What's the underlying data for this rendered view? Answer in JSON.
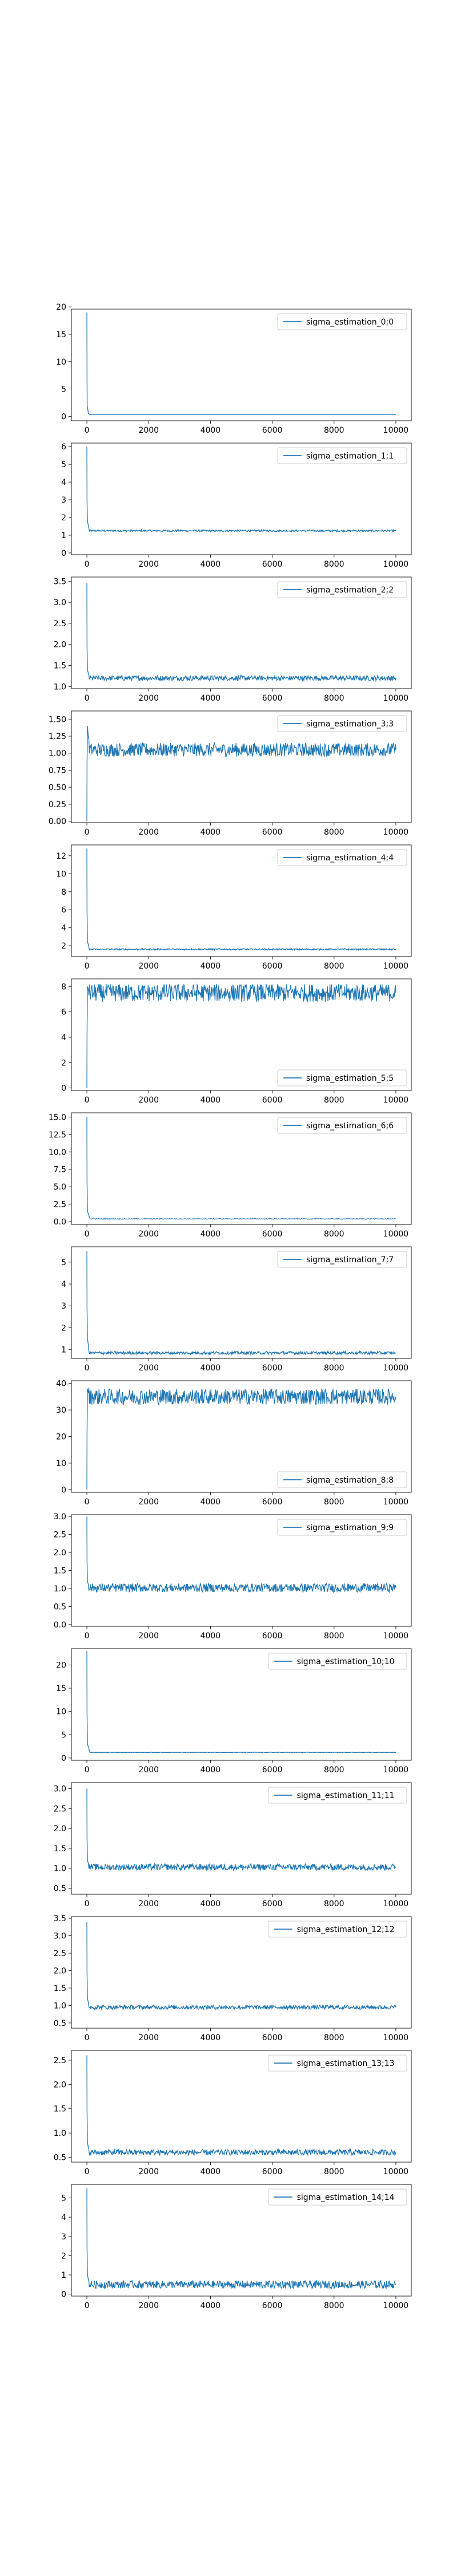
{
  "figure": {
    "background": "#ffffff",
    "line_color": "#1f77b4"
  },
  "chart_data": [
    {
      "type": "line",
      "legend": "sigma_estimation_0;0",
      "legend_loc": "upper right",
      "xlim": [
        -500,
        10500
      ],
      "ylim": [
        -0.8,
        19.6
      ],
      "xticks": [
        0,
        2000,
        4000,
        6000,
        8000,
        10000
      ],
      "yticks": [
        0,
        5,
        10,
        15,
        20
      ],
      "series": [
        {
          "x": [
            0,
            5,
            10,
            50,
            100,
            10000
          ],
          "y": [
            19.0,
            8.0,
            2.0,
            0.5,
            0.3,
            0.3
          ]
        }
      ]
    },
    {
      "type": "line",
      "legend": "sigma_estimation_1;1",
      "legend_loc": "upper right",
      "xlim": [
        -500,
        10500
      ],
      "ylim": [
        -0.1,
        6.2
      ],
      "xticks": [
        0,
        2000,
        4000,
        6000,
        8000,
        10000
      ],
      "yticks": [
        0,
        1,
        2,
        3,
        4,
        5,
        6
      ],
      "series": [
        {
          "x": [
            0,
            5,
            20,
            80,
            10000
          ],
          "y": [
            6.0,
            3.0,
            1.8,
            1.25,
            1.25
          ],
          "noise": 0.05
        }
      ]
    },
    {
      "type": "line",
      "legend": "sigma_estimation_2;2",
      "legend_loc": "upper right",
      "xlim": [
        -500,
        10500
      ],
      "ylim": [
        0.95,
        3.6
      ],
      "xticks": [
        0,
        2000,
        4000,
        6000,
        8000,
        10000
      ],
      "yticks": [
        1.0,
        1.5,
        2.0,
        2.5,
        3.0,
        3.5
      ],
      "series": [
        {
          "x": [
            0,
            5,
            20,
            80,
            10000
          ],
          "y": [
            3.45,
            2.0,
            1.4,
            1.2,
            1.2
          ],
          "noise": 0.06
        }
      ]
    },
    {
      "type": "line",
      "legend": "sigma_estimation_3;3",
      "legend_loc": "upper right",
      "xlim": [
        -500,
        10500
      ],
      "ylim": [
        -0.02,
        1.62
      ],
      "xticks": [
        0,
        2000,
        4000,
        6000,
        8000,
        10000
      ],
      "yticks": [
        0.0,
        0.25,
        0.5,
        0.75,
        1.0,
        1.25,
        1.5
      ],
      "series": [
        {
          "x": [
            0,
            5,
            20,
            80,
            10000
          ],
          "y": [
            0.0,
            0.8,
            1.4,
            1.05,
            1.05
          ],
          "noise": 0.1
        }
      ]
    },
    {
      "type": "line",
      "legend": "sigma_estimation_4;4",
      "legend_loc": "upper right",
      "xlim": [
        -500,
        10500
      ],
      "ylim": [
        0.8,
        13.2
      ],
      "xticks": [
        0,
        2000,
        4000,
        6000,
        8000,
        10000
      ],
      "yticks": [
        2,
        4,
        6,
        8,
        10,
        12
      ],
      "series": [
        {
          "x": [
            0,
            5,
            20,
            80,
            10000
          ],
          "y": [
            12.8,
            6.0,
            2.5,
            1.6,
            1.6
          ],
          "noise": 0.08
        }
      ]
    },
    {
      "type": "line",
      "legend": "sigma_estimation_5;5",
      "legend_loc": "lower right",
      "xlim": [
        -500,
        10500
      ],
      "ylim": [
        -0.2,
        8.6
      ],
      "xticks": [
        0,
        2000,
        4000,
        6000,
        8000,
        10000
      ],
      "yticks": [
        0,
        2,
        4,
        6,
        8
      ],
      "series": [
        {
          "x": [
            0,
            5,
            20,
            80,
            10000
          ],
          "y": [
            0.0,
            4.0,
            8.0,
            7.5,
            7.5
          ],
          "noise": 0.7
        }
      ]
    },
    {
      "type": "line",
      "legend": "sigma_estimation_6;6",
      "legend_loc": "upper right",
      "xlim": [
        -500,
        10500
      ],
      "ylim": [
        -0.4,
        15.6
      ],
      "xticks": [
        0,
        2000,
        4000,
        6000,
        8000,
        10000
      ],
      "yticks": [
        0.0,
        2.5,
        5.0,
        7.5,
        10.0,
        12.5,
        15.0
      ],
      "series": [
        {
          "x": [
            0,
            5,
            20,
            100,
            10000
          ],
          "y": [
            15.0,
            6.0,
            1.5,
            0.4,
            0.4
          ],
          "noise": 0.05
        }
      ]
    },
    {
      "type": "line",
      "legend": "sigma_estimation_7;7",
      "legend_loc": "upper right",
      "xlim": [
        -500,
        10500
      ],
      "ylim": [
        0.6,
        5.7
      ],
      "xticks": [
        0,
        2000,
        4000,
        6000,
        8000,
        10000
      ],
      "yticks": [
        1,
        2,
        3,
        4,
        5
      ],
      "series": [
        {
          "x": [
            0,
            5,
            20,
            80,
            10000
          ],
          "y": [
            5.5,
            3.0,
            1.5,
            0.85,
            0.85
          ],
          "noise": 0.07
        }
      ]
    },
    {
      "type": "line",
      "legend": "sigma_estimation_8;8",
      "legend_loc": "lower right",
      "xlim": [
        -500,
        10500
      ],
      "ylim": [
        -1,
        41
      ],
      "xticks": [
        0,
        2000,
        4000,
        6000,
        8000,
        10000
      ],
      "yticks": [
        0,
        10,
        20,
        30,
        40
      ],
      "series": [
        {
          "x": [
            0,
            5,
            20,
            80,
            10000
          ],
          "y": [
            0.0,
            20.0,
            38.0,
            35.0,
            35.0
          ],
          "noise": 3.0
        }
      ]
    },
    {
      "type": "line",
      "legend": "sigma_estimation_9;9",
      "legend_loc": "upper right",
      "xlim": [
        -500,
        10500
      ],
      "ylim": [
        -0.05,
        3.05
      ],
      "xticks": [
        0,
        2000,
        4000,
        6000,
        8000,
        10000
      ],
      "yticks": [
        0.0,
        0.5,
        1.0,
        1.5,
        2.0,
        2.5,
        3.0
      ],
      "series": [
        {
          "x": [
            0,
            5,
            20,
            80,
            10000
          ],
          "y": [
            3.0,
            1.8,
            1.2,
            1.02,
            1.02
          ],
          "noise": 0.12
        }
      ]
    },
    {
      "type": "line",
      "legend": "sigma_estimation_10;10",
      "legend_loc": "upper right",
      "xlim": [
        -500,
        10500
      ],
      "ylim": [
        -0.5,
        23.5
      ],
      "xticks": [
        0,
        2000,
        4000,
        6000,
        8000,
        10000
      ],
      "yticks": [
        0,
        5,
        10,
        15,
        20
      ],
      "series": [
        {
          "x": [
            0,
            5,
            20,
            100,
            10000
          ],
          "y": [
            23.0,
            10.0,
            3.0,
            1.2,
            1.2
          ],
          "noise": 0.05
        }
      ]
    },
    {
      "type": "line",
      "legend": "sigma_estimation_11;11",
      "legend_loc": "upper right",
      "xlim": [
        -500,
        10500
      ],
      "ylim": [
        0.35,
        3.15
      ],
      "xticks": [
        0,
        2000,
        4000,
        6000,
        8000,
        10000
      ],
      "yticks": [
        0.5,
        1.0,
        1.5,
        2.0,
        2.5,
        3.0
      ],
      "series": [
        {
          "x": [
            0,
            5,
            20,
            80,
            10000
          ],
          "y": [
            3.0,
            1.8,
            1.2,
            1.03,
            1.03
          ],
          "noise": 0.08
        }
      ]
    },
    {
      "type": "line",
      "legend": "sigma_estimation_12;12",
      "legend_loc": "upper right",
      "xlim": [
        -500,
        10500
      ],
      "ylim": [
        0.35,
        3.55
      ],
      "xticks": [
        0,
        2000,
        4000,
        6000,
        8000,
        10000
      ],
      "yticks": [
        0.5,
        1.0,
        1.5,
        2.0,
        2.5,
        3.0,
        3.5
      ],
      "series": [
        {
          "x": [
            0,
            5,
            20,
            80,
            10000
          ],
          "y": [
            3.4,
            2.0,
            1.2,
            0.95,
            0.95
          ],
          "noise": 0.06
        }
      ]
    },
    {
      "type": "line",
      "legend": "sigma_estimation_13;13",
      "legend_loc": "upper right",
      "xlim": [
        -500,
        10500
      ],
      "ylim": [
        0.4,
        2.7
      ],
      "xticks": [
        0,
        2000,
        4000,
        6000,
        8000,
        10000
      ],
      "yticks": [
        0.5,
        1.0,
        1.5,
        2.0,
        2.5
      ],
      "series": [
        {
          "x": [
            0,
            5,
            20,
            80,
            10000
          ],
          "y": [
            2.6,
            1.5,
            0.8,
            0.6,
            0.6
          ],
          "noise": 0.06
        }
      ]
    },
    {
      "type": "line",
      "legend": "sigma_estimation_14;14",
      "legend_loc": "upper right",
      "xlim": [
        -500,
        10500
      ],
      "ylim": [
        -0.1,
        5.7
      ],
      "xticks": [
        0,
        2000,
        4000,
        6000,
        8000,
        10000
      ],
      "yticks": [
        0,
        1,
        2,
        3,
        4,
        5
      ],
      "series": [
        {
          "x": [
            0,
            5,
            20,
            80,
            10000
          ],
          "y": [
            5.5,
            2.5,
            1.0,
            0.5,
            0.5
          ],
          "noise": 0.2
        }
      ]
    }
  ]
}
